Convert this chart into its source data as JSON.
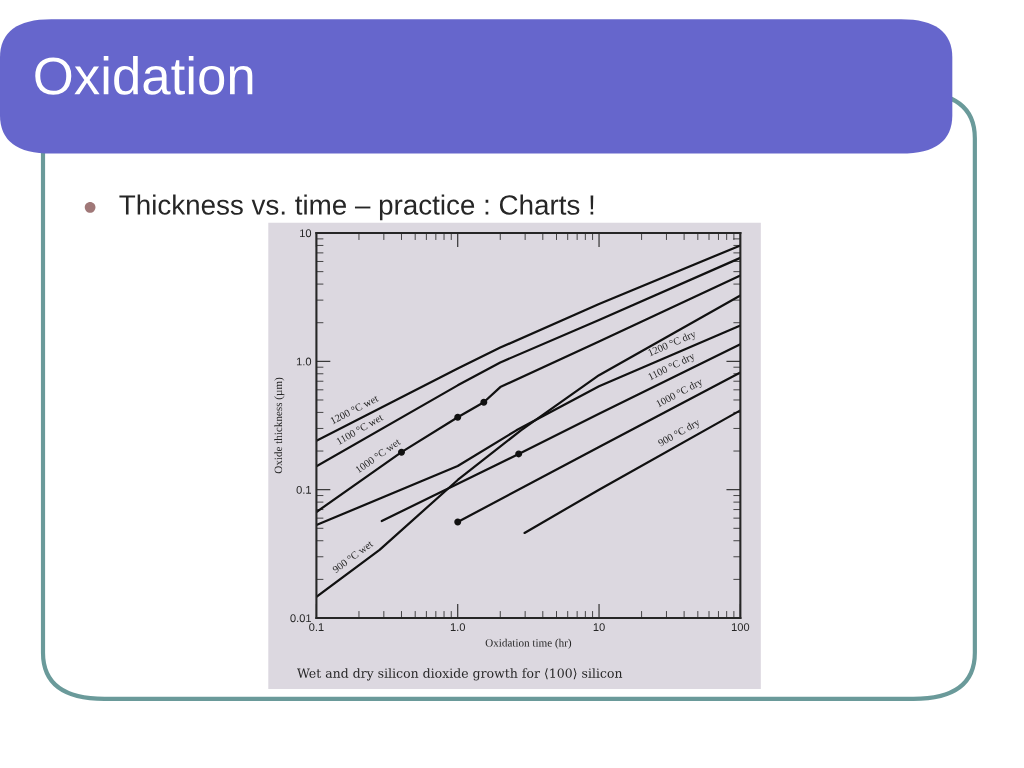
{
  "chart_data": {
    "type": "line",
    "title": "Oxidation",
    "subtitle": "Thickness vs. time – practice : Charts !",
    "xlabel": "Oxidation time (hr)",
    "ylabel": "Oxide thickness (µm)",
    "log": "xy",
    "xlim": [
      0.1,
      100
    ],
    "ylim": [
      0.01,
      10
    ],
    "xticks": [
      0.1,
      {
        "value": 1,
        "label": "1.0"
      },
      10,
      100
    ],
    "yticks": [
      0.01,
      0.1,
      {
        "value": 1,
        "label": "1.0"
      },
      10
    ],
    "grid": false,
    "marker": "none",
    "line_style": "solid",
    "series": [
      {
        "color": "#111111",
        "x": [
          0.1,
          1,
          2,
          10,
          100
        ],
        "values": [
          0.24,
          0.88,
          1.28,
          2.8,
          8.0
        ]
      },
      {
        "color": "#111111",
        "x": [
          0.1,
          1,
          2,
          10,
          100
        ],
        "values": [
          0.152,
          0.65,
          0.98,
          2.1,
          6.4
        ]
      },
      {
        "color": "#111111",
        "x": [
          0.1,
          0.4,
          1,
          1.53,
          2,
          10,
          100
        ],
        "values": [
          0.067,
          0.196,
          0.367,
          0.48,
          0.63,
          1.43,
          4.67
        ]
      },
      {
        "color": "#111111",
        "x": [
          0.1,
          0.28,
          1,
          2.8,
          10,
          100
        ],
        "values": [
          0.0146,
          0.034,
          0.119,
          0.29,
          0.78,
          3.26
        ]
      },
      {
        "color": "#111111",
        "x": [
          0.1,
          1,
          2.6,
          10,
          100
        ],
        "values": [
          0.053,
          0.153,
          0.29,
          0.64,
          1.9
        ]
      },
      {
        "color": "#111111",
        "x": [
          0.29,
          2.7,
          10,
          100
        ],
        "values": [
          0.057,
          0.19,
          0.39,
          1.36
        ]
      },
      {
        "color": "#111111",
        "x": [
          1,
          10,
          100
        ],
        "values": [
          0.056,
          0.215,
          0.82
        ]
      },
      {
        "color": "#111111",
        "x": [
          2.97,
          10,
          100
        ],
        "values": [
          0.046,
          0.1,
          0.415
        ]
      },
      {
        "type": "scatter",
        "color": "#111111",
        "marker": "circle",
        "x": [
          0.4,
          1,
          1.53,
          2.7,
          1
        ],
        "values": [
          0.196,
          0.367,
          0.48,
          0.19,
          0.056
        ]
      }
    ],
    "annotations": [
      {
        "text": "1200 °C wet",
        "x": 0.2,
        "y": 0.355
      },
      {
        "text": "1100 °C wet",
        "x": 0.22,
        "y": 0.25
      },
      {
        "text": "1000 °C wet",
        "x": 0.3,
        "y": 0.157
      },
      {
        "text": "900 °C wet",
        "x": 0.2,
        "y": 0.0258
      },
      {
        "text": "1200 °C dry",
        "x": 35,
        "y": 1.16
      },
      {
        "text": "1100 °C dry",
        "x": 35,
        "y": 0.77
      },
      {
        "text": "1000 °C dry",
        "x": 40,
        "y": 0.481
      },
      {
        "text": "900 °C dry",
        "x": 40,
        "y": 0.236
      },
      "Wet and dry silicon dioxide growth for ⟨100⟩ silicon"
    ]
  }
}
